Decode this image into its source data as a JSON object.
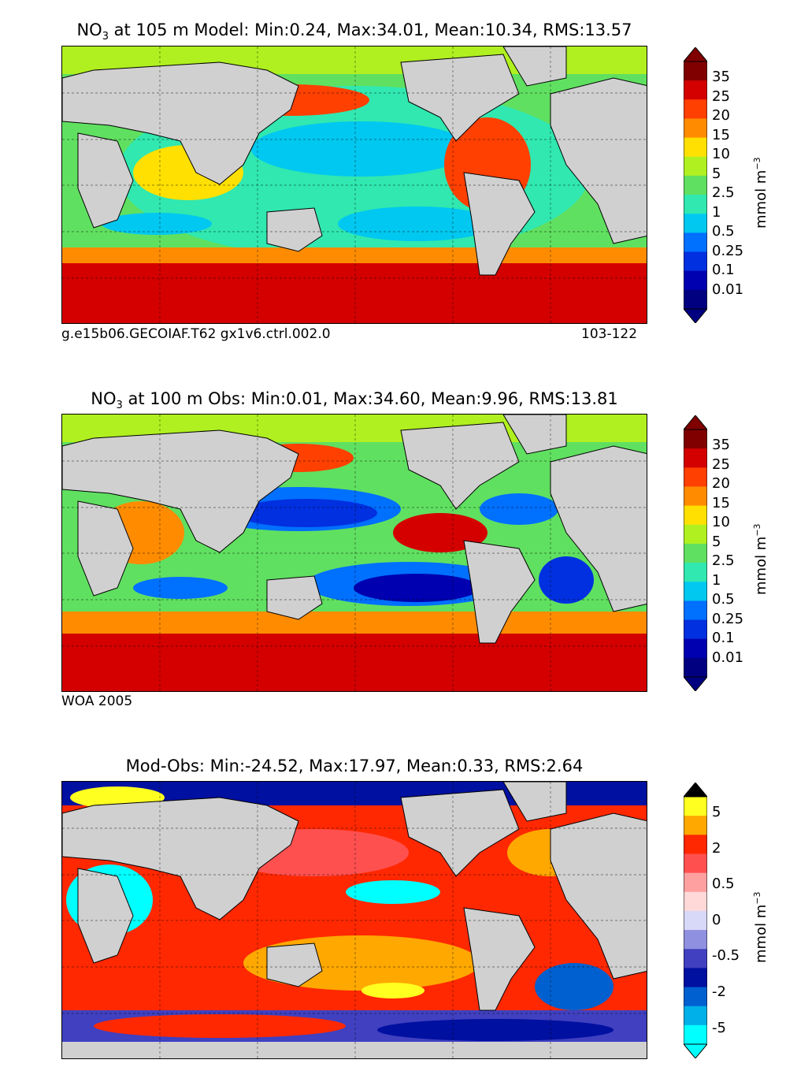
{
  "panels": [
    {
      "id": "model",
      "title_prefix": "NO",
      "title_sub": "3",
      "title_rest": " at 105 m Model: Min:0.24, Max:34.01, Mean:10.34, RMS:13.57",
      "caption_left": "g.e15b06.GECOIAF.T62 gx1v6.ctrl.002.0",
      "caption_right": "103-122",
      "unit_label": "mmol m",
      "unit_sup": "−3",
      "colorbar_ticks": [
        "35",
        "25",
        "20",
        "15",
        "10",
        "5",
        "2.5",
        "1",
        "0.5",
        "0.25",
        "0.1",
        "0.01"
      ],
      "colorbar_colors": [
        "#800000",
        "#d40000",
        "#ff4000",
        "#ff8c00",
        "#ffe000",
        "#b0f020",
        "#60e060",
        "#30e8b0",
        "#00c8f0",
        "#0070ff",
        "#0030e0",
        "#0000b0",
        "#000080"
      ]
    },
    {
      "id": "obs",
      "title_prefix": "NO",
      "title_sub": "3",
      "title_rest": " at 100 m Obs: Min:0.01, Max:34.60, Mean:9.96, RMS:13.81",
      "caption_left": "WOA 2005",
      "caption_right": "",
      "unit_label": "mmol m",
      "unit_sup": "−3",
      "colorbar_ticks": [
        "35",
        "25",
        "20",
        "15",
        "10",
        "5",
        "2.5",
        "1",
        "0.5",
        "0.25",
        "0.1",
        "0.01"
      ],
      "colorbar_colors": [
        "#800000",
        "#d40000",
        "#ff4000",
        "#ff8c00",
        "#ffe000",
        "#b0f020",
        "#60e060",
        "#30e8b0",
        "#00c8f0",
        "#0070ff",
        "#0030e0",
        "#0000b0",
        "#000080"
      ]
    },
    {
      "id": "diff",
      "title_prefix": "",
      "title_sub": "",
      "title_rest": "Mod-Obs: Min:-24.52, Max:17.97, Mean:0.33, RMS:2.64",
      "caption_left": "",
      "caption_right": "",
      "unit_label": "mmol m",
      "unit_sup": "−3",
      "colorbar_ticks": [
        "5",
        "2",
        "0.5",
        "0",
        "-0.5",
        "-2",
        "-5"
      ],
      "colorbar_colors": [
        "#ffff20",
        "#ffa800",
        "#ff2800",
        "#ff5050",
        "#ffa0a0",
        "#ffd8d8",
        "#d8d8f8",
        "#9090e0",
        "#4040c0",
        "#0010a0",
        "#0060d0",
        "#00b0e8",
        "#00ffff"
      ]
    }
  ]
}
